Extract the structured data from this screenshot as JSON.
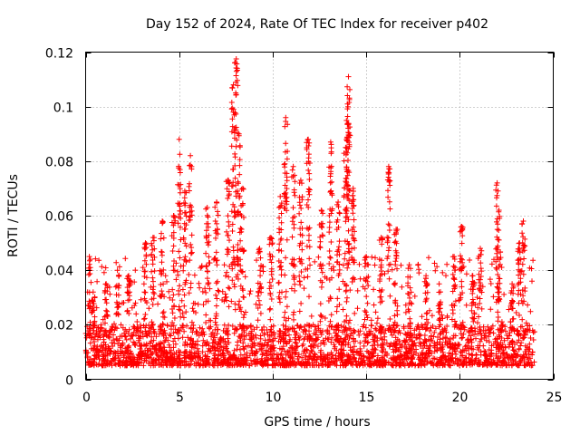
{
  "chart_data": {
    "type": "scatter",
    "title": "Day 152 of 2024, Rate Of TEC Index for receiver p402",
    "xlabel": "GPS time / hours",
    "ylabel": "ROTI / TECUs",
    "xlim": [
      0,
      25
    ],
    "ylim": [
      0,
      0.12
    ],
    "x_ticks": [
      0,
      5,
      10,
      15,
      20,
      25
    ],
    "x_tick_labels": [
      "0",
      "5",
      "10",
      "15",
      "20",
      "25"
    ],
    "y_ticks": [
      0,
      0.02,
      0.04,
      0.06,
      0.08,
      0.1,
      0.12
    ],
    "y_tick_labels": [
      "0",
      "0.02",
      "0.04",
      "0.06",
      "0.08",
      "0.1",
      "0.12"
    ],
    "grid": true,
    "marker": "plus",
    "color": "#ff0000",
    "series": [
      {
        "name": "ROTI",
        "baseline": {
          "x_range": [
            0,
            24
          ],
          "typical_range": [
            0.005,
            0.02
          ],
          "max_range": [
            0.02,
            0.045
          ]
        },
        "spikes": [
          {
            "x": 0.2,
            "y": 0.045
          },
          {
            "x": 0.4,
            "y": 0.032
          },
          {
            "x": 1.1,
            "y": 0.035
          },
          {
            "x": 1.7,
            "y": 0.04
          },
          {
            "x": 2.3,
            "y": 0.038
          },
          {
            "x": 3.2,
            "y": 0.05
          },
          {
            "x": 3.6,
            "y": 0.052
          },
          {
            "x": 4.1,
            "y": 0.058
          },
          {
            "x": 4.7,
            "y": 0.06
          },
          {
            "x": 5.0,
            "y": 0.088
          },
          {
            "x": 5.3,
            "y": 0.069
          },
          {
            "x": 5.6,
            "y": 0.082
          },
          {
            "x": 6.5,
            "y": 0.063
          },
          {
            "x": 7.0,
            "y": 0.065
          },
          {
            "x": 7.6,
            "y": 0.073
          },
          {
            "x": 7.9,
            "y": 0.108
          },
          {
            "x": 8.05,
            "y": 0.1175
          },
          {
            "x": 8.2,
            "y": 0.09
          },
          {
            "x": 8.4,
            "y": 0.07
          },
          {
            "x": 9.3,
            "y": 0.048
          },
          {
            "x": 9.9,
            "y": 0.052
          },
          {
            "x": 10.4,
            "y": 0.067
          },
          {
            "x": 10.7,
            "y": 0.096
          },
          {
            "x": 11.1,
            "y": 0.078
          },
          {
            "x": 11.5,
            "y": 0.073
          },
          {
            "x": 11.9,
            "y": 0.088
          },
          {
            "x": 12.6,
            "y": 0.062
          },
          {
            "x": 13.1,
            "y": 0.087
          },
          {
            "x": 13.5,
            "y": 0.065
          },
          {
            "x": 13.9,
            "y": 0.085
          },
          {
            "x": 14.0,
            "y": 0.101
          },
          {
            "x": 14.05,
            "y": 0.111
          },
          {
            "x": 14.3,
            "y": 0.07
          },
          {
            "x": 15.0,
            "y": 0.045
          },
          {
            "x": 15.8,
            "y": 0.052
          },
          {
            "x": 16.2,
            "y": 0.078
          },
          {
            "x": 16.6,
            "y": 0.055
          },
          {
            "x": 17.3,
            "y": 0.042
          },
          {
            "x": 18.2,
            "y": 0.038
          },
          {
            "x": 18.9,
            "y": 0.035
          },
          {
            "x": 19.7,
            "y": 0.045
          },
          {
            "x": 20.1,
            "y": 0.056
          },
          {
            "x": 20.7,
            "y": 0.038
          },
          {
            "x": 21.1,
            "y": 0.048
          },
          {
            "x": 22.0,
            "y": 0.072
          },
          {
            "x": 22.1,
            "y": 0.062
          },
          {
            "x": 22.8,
            "y": 0.035
          },
          {
            "x": 23.2,
            "y": 0.05
          },
          {
            "x": 23.4,
            "y": 0.058
          }
        ]
      }
    ]
  }
}
